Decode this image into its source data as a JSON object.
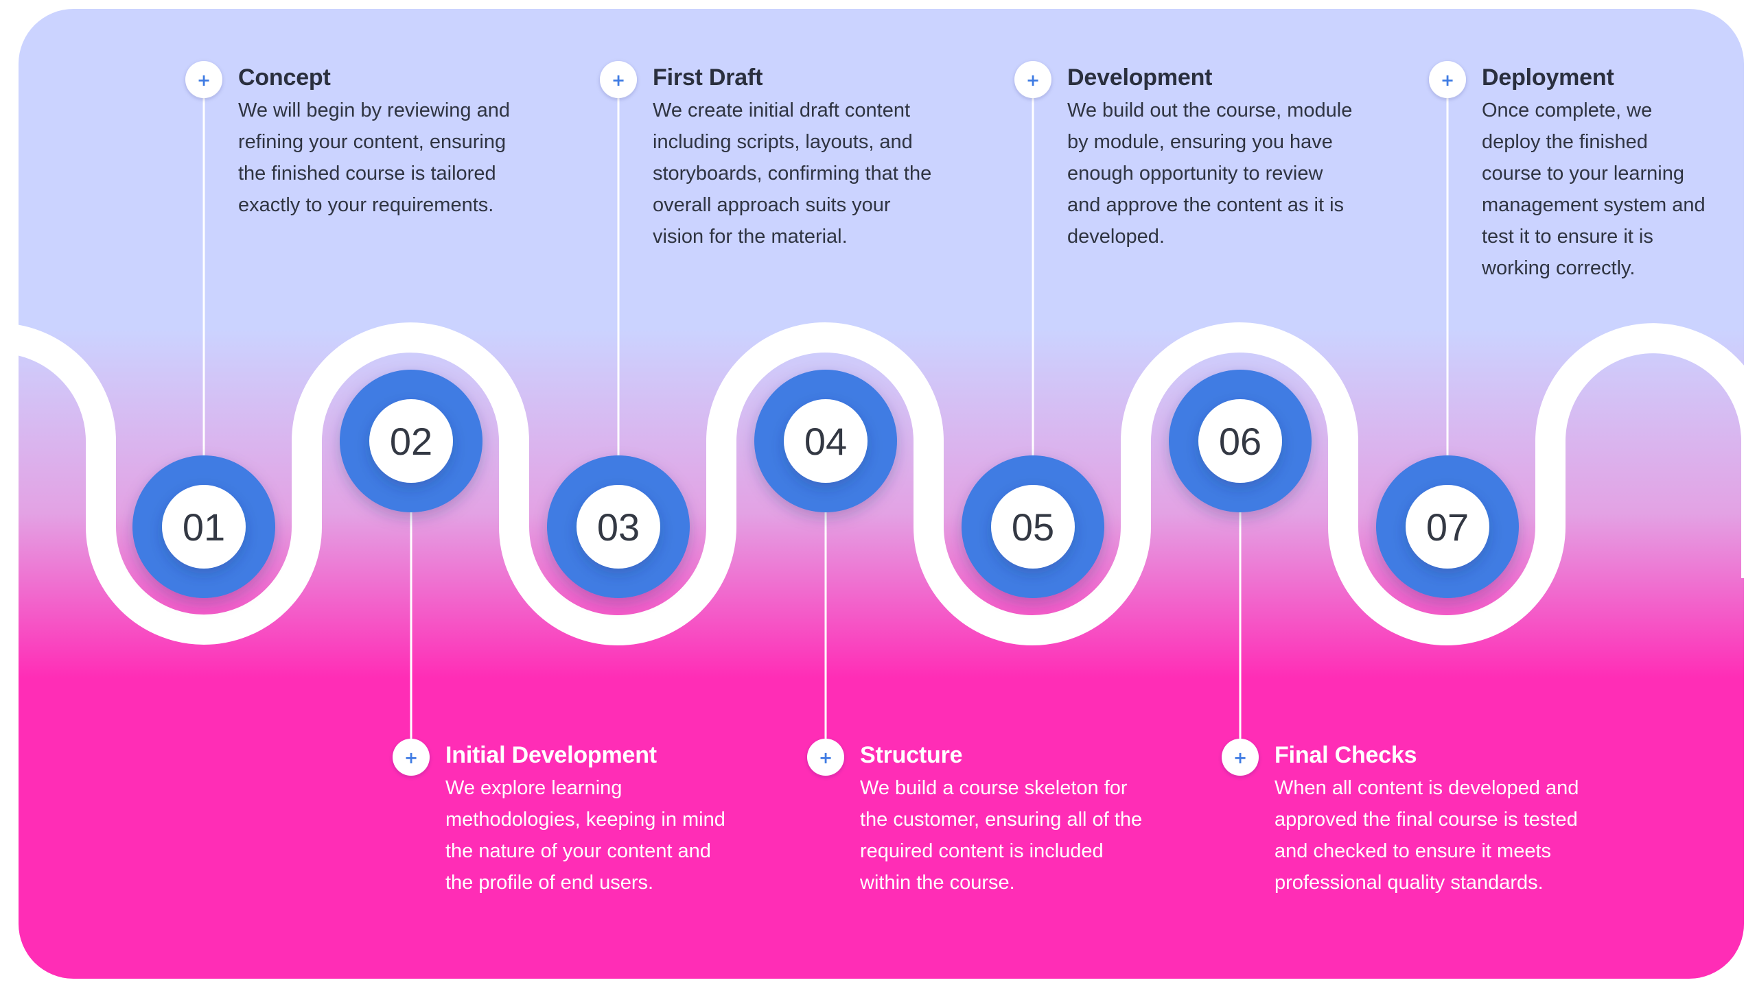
{
  "colors": {
    "background_top": "#CBD3FF",
    "background_bottom": "#FF2DB6",
    "node_ring": "#3F7BE3",
    "node_center": "#FFFFFF",
    "number_text": "#333843",
    "top_title": "#2A2F3E",
    "top_text": "#2F3442",
    "bottom_text": "#FFFFFF",
    "plus_glyph": "#3F7BE3",
    "connector": "#FFFFFF"
  },
  "steps": [
    {
      "number": "01",
      "title": "Concept",
      "lines": [
        "We will begin by reviewing and",
        "refining your content, ensuring",
        "the finished course is tailored",
        "exactly to your requirements."
      ]
    },
    {
      "number": "02",
      "title": "Initial Development",
      "lines": [
        "We explore learning",
        "methodologies, keeping in mind",
        "the nature of your content and",
        "the profile of end users."
      ]
    },
    {
      "number": "03",
      "title": "First Draft",
      "lines": [
        "We create initial draft content",
        "including scripts, layouts, and",
        "storyboards, confirming that the",
        "overall approach suits your",
        "vision for the material."
      ]
    },
    {
      "number": "04",
      "title": "Structure",
      "lines": [
        "We build a course skeleton for",
        "the customer, ensuring all of the",
        "required content is included",
        "within the course."
      ]
    },
    {
      "number": "05",
      "title": "Development",
      "lines": [
        "We build out the course, module",
        "by module, ensuring you have",
        "enough opportunity to review",
        "and approve the content as it is",
        "developed."
      ]
    },
    {
      "number": "06",
      "title": "Final Checks",
      "lines": [
        "When all content is developed and",
        "approved the final course is tested",
        "and checked to ensure it meets",
        "professional quality standards."
      ]
    },
    {
      "number": "07",
      "title": "Deployment",
      "lines": [
        "Once complete, we",
        "deploy the finished",
        "course to your learning",
        "management system and",
        "test it to ensure it is",
        "working correctly."
      ]
    }
  ]
}
